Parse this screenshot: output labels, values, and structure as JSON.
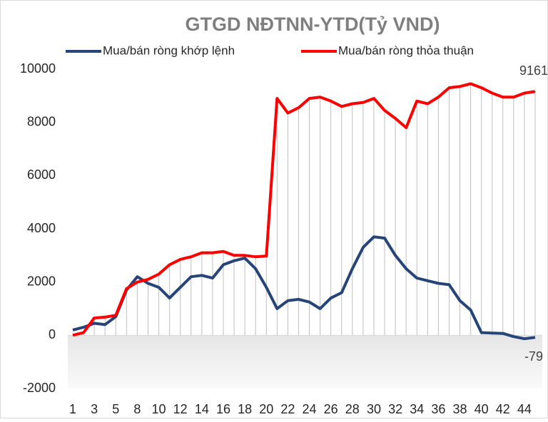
{
  "chart_data": {
    "type": "line",
    "title": "GTGD NĐTNN-YTD(Tỷ VND)",
    "categories": [
      "1",
      null,
      "3",
      null,
      "5",
      null,
      "8",
      null,
      "10",
      null,
      "12",
      null,
      "14",
      null,
      "16",
      null,
      "18",
      null,
      "20",
      null,
      "22",
      null,
      "24",
      null,
      "26",
      null,
      "28",
      null,
      "30",
      null,
      "32",
      null,
      "34",
      null,
      "36",
      null,
      "38",
      null,
      "40",
      null,
      "42",
      null,
      "44",
      null
    ],
    "series": [
      {
        "name": "Mua/bán ròng khớp lệnh",
        "color": "#264478",
        "values": [
          200,
          300,
          450,
          400,
          700,
          1700,
          2200,
          1950,
          1800,
          1400,
          1800,
          2200,
          2250,
          2150,
          2650,
          2800,
          2900,
          2500,
          1800,
          1000,
          1300,
          1350,
          1250,
          1000,
          1400,
          1600,
          2500,
          3300,
          3700,
          3650,
          3000,
          2500,
          2150,
          2050,
          1950,
          1900,
          1300,
          950,
          100,
          80,
          70,
          -50,
          -130,
          -79
        ]
      },
      {
        "name": "Mua/bán ròng thỏa thuận",
        "color": "#ff0000",
        "values": [
          0,
          100,
          650,
          680,
          750,
          1750,
          2000,
          2100,
          2300,
          2650,
          2850,
          2950,
          3100,
          3100,
          3150,
          3000,
          3000,
          2950,
          2980,
          8900,
          8350,
          8550,
          8900,
          8950,
          8800,
          8600,
          8700,
          8750,
          8900,
          8450,
          8150,
          7800,
          8800,
          8700,
          8950,
          9300,
          9350,
          9450,
          9300,
          9100,
          8950,
          8950,
          9100,
          9161
        ]
      }
    ],
    "ylim": [
      -2000,
      10000
    ],
    "yticks": [
      -2000,
      0,
      2000,
      4000,
      6000,
      8000,
      10000
    ],
    "drop_lines": true,
    "legend": "top"
  }
}
